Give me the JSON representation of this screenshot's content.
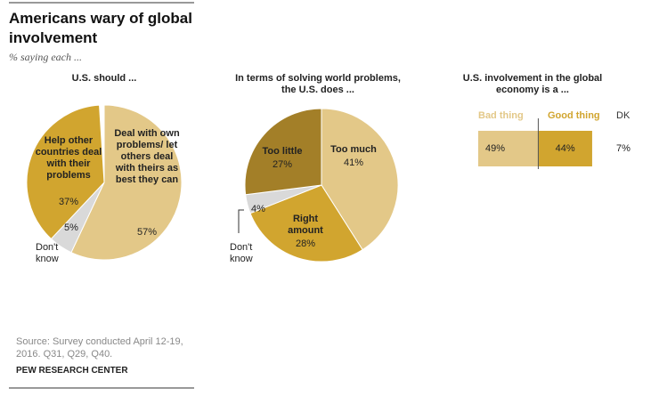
{
  "header": {
    "title": "Americans wary of global involvement",
    "subtitle": "% saying each ..."
  },
  "chart_data": [
    {
      "type": "pie",
      "title": "U.S. should ...",
      "categories": [
        "Deal with own problems/ let others deal with theirs as best they can",
        "Don't know",
        "Help other countries deal with their problems"
      ],
      "values": [
        57,
        5,
        37
      ],
      "value_labels": [
        "57%",
        "5%",
        "37%"
      ],
      "colors": [
        "#e3c888",
        "#d9d9d9",
        "#d1a52f"
      ]
    },
    {
      "type": "pie",
      "title": "In terms of solving world problems, the U.S. does ...",
      "categories": [
        "Too much",
        "Right amount",
        "Don't know",
        "Too little"
      ],
      "values": [
        41,
        28,
        4,
        27
      ],
      "value_labels": [
        "41%",
        "28%",
        "4%",
        "27%"
      ],
      "colors": [
        "#e3c888",
        "#d1a52f",
        "#d9d9d9",
        "#a37f28"
      ]
    },
    {
      "type": "bar",
      "title": "U.S. involvement in the global economy is a ...",
      "series": [
        {
          "name": "Bad thing",
          "color": "#e3c888",
          "values": [
            49
          ],
          "value_labels": [
            "49%"
          ]
        },
        {
          "name": "Good thing",
          "color": "#d1a52f",
          "values": [
            44
          ],
          "value_labels": [
            "44%"
          ]
        },
        {
          "name": "DK",
          "color": "#ffffff",
          "values": [
            7
          ],
          "value_labels": [
            "7%"
          ]
        }
      ]
    }
  ],
  "footer": {
    "source": "Source: Survey conducted April 12-19, 2016. Q31, Q29, Q40.",
    "credit": "PEW RESEARCH CENTER"
  }
}
